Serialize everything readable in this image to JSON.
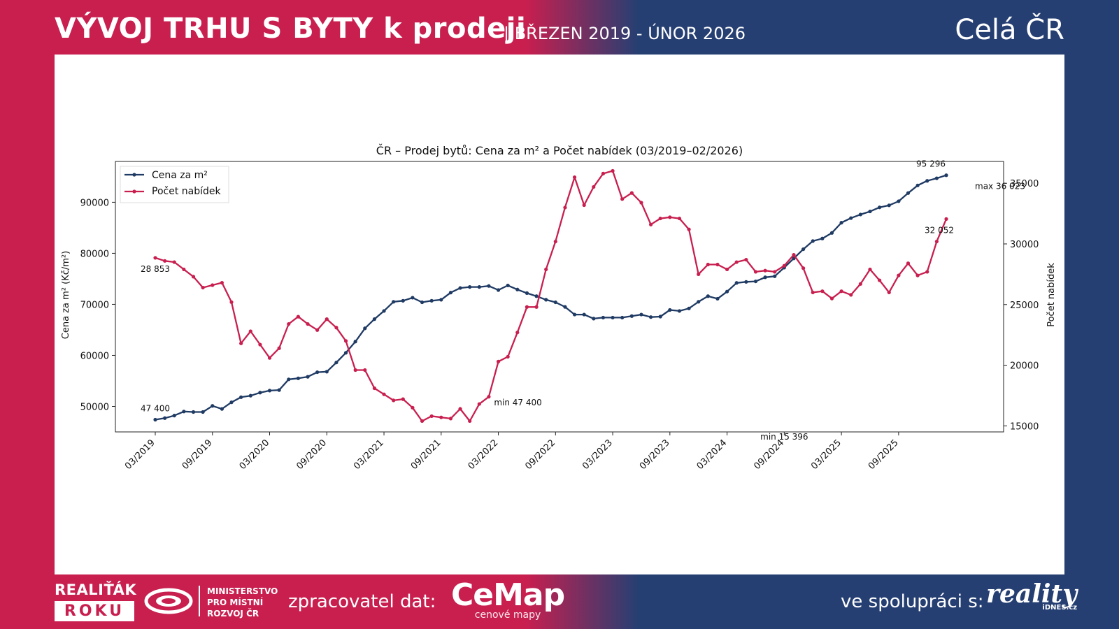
{
  "header": {
    "title": "VÝVOJ TRHU S BYTY k prodeji",
    "subtitle": "| BŘEZEN 2019 - ÚNOR 2026",
    "region": "Celá ČR"
  },
  "colors": {
    "price": "#1f3a63",
    "count": "#c81f4f",
    "bg_left": "#c81f4f",
    "bg_right": "#263f72"
  },
  "chart_data": {
    "type": "line",
    "title": "ČR – Prodej bytů: Cena za m² a Počet nabídek (03/2019–02/2026)",
    "x_ticks": [
      "03/2019",
      "09/2019",
      "03/2020",
      "09/2020",
      "03/2021",
      "09/2021",
      "03/2022",
      "09/2022",
      "03/2023",
      "09/2023",
      "03/2024",
      "09/2024",
      "03/2025",
      "09/2025"
    ],
    "ylabel_left": "Cena za m² (Kč/m²)",
    "ylabel_right": "Počet nabídek",
    "ylim_left": [
      45000,
      98000
    ],
    "ylim_right": [
      14500,
      36800
    ],
    "yticks_left": [
      50000,
      60000,
      70000,
      80000,
      90000
    ],
    "yticks_right": [
      15000,
      20000,
      25000,
      30000,
      35000
    ],
    "legend_position": "top-left",
    "series": [
      {
        "name": "Cena za m²",
        "axis": "left",
        "color": "#1f3a63",
        "values": [
          47400,
          47700,
          48200,
          49000,
          48900,
          48900,
          50100,
          49500,
          50800,
          51800,
          52100,
          52700,
          53100,
          53200,
          55300,
          55500,
          55800,
          56700,
          56800,
          58600,
          60500,
          62700,
          65300,
          67100,
          68700,
          70500,
          70700,
          71300,
          70400,
          70700,
          70900,
          72300,
          73200,
          73400,
          73400,
          73600,
          72800,
          73700,
          72900,
          72200,
          71600,
          70900,
          70400,
          69500,
          68000,
          68000,
          67200,
          67400,
          67400,
          67400,
          67700,
          68000,
          67500,
          67600,
          68900,
          68700,
          69200,
          70500,
          71600,
          71100,
          72500,
          74200,
          74400,
          74500,
          75300,
          75500,
          77200,
          79000,
          80800,
          82400,
          82900,
          84000,
          86000,
          86900,
          87600,
          88200,
          89000,
          89400,
          90200,
          91800,
          93300,
          94200,
          94700,
          95296
        ]
      },
      {
        "name": "Počet nabídek",
        "axis": "right",
        "color": "#c81f4f",
        "values": [
          28853,
          28600,
          28500,
          27900,
          27300,
          26400,
          26600,
          26800,
          25200,
          21800,
          22800,
          21700,
          20600,
          21400,
          23400,
          24000,
          23400,
          22900,
          23800,
          23100,
          22000,
          19600,
          19600,
          18100,
          17600,
          17100,
          17200,
          16500,
          15396,
          15800,
          15700,
          15600,
          16400,
          15396,
          16800,
          17400,
          20300,
          20700,
          22700,
          24800,
          24800,
          27900,
          30200,
          33000,
          35500,
          33200,
          34700,
          35800,
          36023,
          33700,
          34200,
          33400,
          31600,
          32100,
          32200,
          32100,
          31200,
          27500,
          28300,
          28300,
          27900,
          28500,
          28700,
          27700,
          27800,
          27700,
          28200,
          29100,
          28000,
          26000,
          26100,
          25500,
          26100,
          25800,
          26700,
          27900,
          27000,
          26000,
          27400,
          28400,
          27400,
          27700,
          30200,
          32052
        ]
      }
    ],
    "annotations": [
      {
        "series": "Cena za m²",
        "point": "start",
        "text": "47 400"
      },
      {
        "series": "Cena za m²",
        "point": "end",
        "text": "95 296"
      },
      {
        "series": "Počet nabídek",
        "point": "start",
        "text": "28 853"
      },
      {
        "series": "Počet nabídek",
        "point": "end",
        "text": "32 052"
      },
      {
        "series": "Cena za m²",
        "point": "min",
        "text": "min 47 400"
      },
      {
        "series": "Počet nabídek",
        "point": "max",
        "text": "max 36 023"
      },
      {
        "series": "Počet nabídek",
        "point": "min",
        "text": "min 15 396"
      }
    ]
  },
  "footer": {
    "realitak_top": "REALIŤÁK",
    "realitak_bottom": "ROKU",
    "ministry": "MINISTERSTVO\nPRO MÍSTNÍ\nROZVOJ ČR",
    "processor_label": "zpracovatel dat:",
    "cemap_name": "CeMap",
    "cemap_sub": "cenové mapy",
    "partner_label": "ve spolupráci s:",
    "reality_name": "reality",
    "reality_sub": "iDNES.cz"
  }
}
